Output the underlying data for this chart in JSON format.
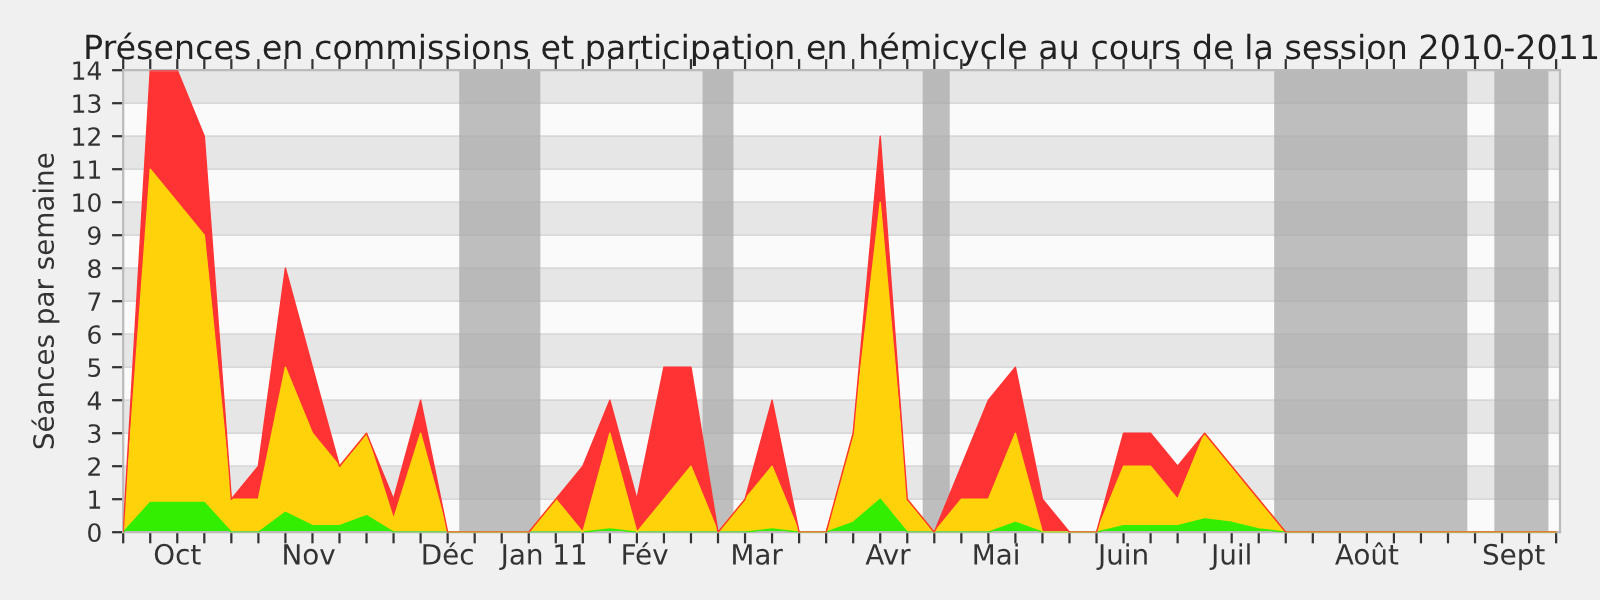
{
  "chart_data": {
    "type": "area",
    "stacked": true,
    "title": "Présences en commissions et participation en hémicycle au cours de la session 2010-2011",
    "ylabel": "Séances par semaine",
    "x": [
      "2010-09-27",
      "2010-10-04",
      "2010-10-11",
      "2010-10-18",
      "2010-10-25",
      "2010-11-01",
      "2010-11-08",
      "2010-11-15",
      "2010-11-22",
      "2010-11-29",
      "2010-12-06",
      "2010-12-13",
      "2010-12-20",
      "2010-12-27",
      "2011-01-03",
      "2011-01-10",
      "2011-01-17",
      "2011-01-24",
      "2011-01-31",
      "2011-02-07",
      "2011-02-14",
      "2011-02-21",
      "2011-02-28",
      "2011-03-07",
      "2011-03-14",
      "2011-03-21",
      "2011-03-28",
      "2011-04-04",
      "2011-04-11",
      "2011-04-18",
      "2011-04-25",
      "2011-05-02",
      "2011-05-09",
      "2011-05-16",
      "2011-05-23",
      "2011-05-30",
      "2011-06-06",
      "2011-06-13",
      "2011-06-20",
      "2011-06-27",
      "2011-07-04",
      "2011-07-11",
      "2011-07-18",
      "2011-07-25",
      "2011-08-01",
      "2011-08-08",
      "2011-08-15",
      "2011-08-22",
      "2011-08-29",
      "2011-09-05",
      "2011-09-12",
      "2011-09-19",
      "2011-09-26",
      "2011-10-03"
    ],
    "series": [
      {
        "color": "#33ee00",
        "values": [
          0,
          0.9,
          0.9,
          0.9,
          0,
          0,
          0.6,
          0.2,
          0.2,
          0.5,
          0,
          0,
          0,
          0,
          0,
          0,
          0,
          0,
          0.1,
          0,
          0,
          0,
          0,
          0,
          0.1,
          0,
          0,
          0.3,
          1,
          0,
          0,
          0,
          0,
          0.3,
          0,
          0,
          0,
          0.2,
          0.2,
          0.2,
          0.4,
          0.3,
          0.1,
          0,
          0,
          0,
          0,
          0,
          0,
          0,
          0,
          0,
          0,
          0
        ]
      },
      {
        "color": "#ffd20a",
        "values": [
          0,
          10.1,
          9.1,
          8.1,
          1,
          1,
          4.4,
          2.8,
          1.8,
          2.5,
          0.4,
          3,
          0,
          0,
          0,
          0,
          1,
          0,
          2.9,
          0,
          1,
          2,
          0,
          1,
          1.9,
          0,
          0,
          2.7,
          9,
          1,
          0,
          1,
          1,
          2.7,
          0,
          0,
          0,
          1.8,
          1.8,
          0.8,
          2.6,
          1.7,
          0.9,
          0,
          0,
          0,
          0,
          0,
          0,
          0,
          0,
          0,
          0,
          0
        ]
      },
      {
        "color": "#ff3333",
        "values": [
          0,
          3,
          4,
          3,
          0,
          1,
          3,
          2,
          0,
          0,
          0.6,
          1,
          0,
          0,
          0,
          0,
          0,
          2,
          1,
          1,
          4,
          3,
          0,
          0,
          2,
          0,
          0,
          0,
          2,
          0,
          0,
          1,
          3,
          2,
          1,
          0,
          0,
          1,
          1,
          1,
          0,
          0,
          0,
          0,
          0,
          0,
          0,
          0,
          0,
          0,
          0,
          0,
          0,
          0
        ]
      }
    ],
    "xlim": [
      "2010-09-27",
      "2011-10-04"
    ],
    "xticks": [
      {
        "value": "2010-09-27",
        "label": null
      },
      {
        "value": "2010-10-04",
        "label": null
      },
      {
        "value": "2010-10-11",
        "label": null
      },
      {
        "value": "2010-10-18",
        "label": null
      },
      {
        "value": "2010-10-25",
        "label": null
      },
      {
        "value": "2010-11-01",
        "label": null
      },
      {
        "value": "2010-11-08",
        "label": null
      },
      {
        "value": "2010-11-15",
        "label": null
      },
      {
        "value": "2010-11-22",
        "label": null
      },
      {
        "value": "2010-11-29",
        "label": null
      },
      {
        "value": "2010-12-06",
        "label": null
      },
      {
        "value": "2010-12-13",
        "label": null
      },
      {
        "value": "2010-12-20",
        "label": null
      },
      {
        "value": "2010-12-27",
        "label": null
      },
      {
        "value": "2011-01-03",
        "label": null
      },
      {
        "value": "2011-01-10",
        "label": null
      },
      {
        "value": "2011-01-17",
        "label": null
      },
      {
        "value": "2011-01-24",
        "label": null
      },
      {
        "value": "2011-01-31",
        "label": null
      },
      {
        "value": "2011-02-07",
        "label": null
      },
      {
        "value": "2011-02-14",
        "label": null
      },
      {
        "value": "2011-02-21",
        "label": null
      },
      {
        "value": "2011-02-28",
        "label": null
      },
      {
        "value": "2011-03-07",
        "label": null
      },
      {
        "value": "2011-03-14",
        "label": null
      },
      {
        "value": "2011-03-21",
        "label": null
      },
      {
        "value": "2011-03-28",
        "label": null
      },
      {
        "value": "2011-04-04",
        "label": null
      },
      {
        "value": "2011-04-11",
        "label": null
      },
      {
        "value": "2011-04-18",
        "label": null
      },
      {
        "value": "2011-04-25",
        "label": null
      },
      {
        "value": "2011-05-02",
        "label": null
      },
      {
        "value": "2011-05-09",
        "label": null
      },
      {
        "value": "2011-05-16",
        "label": null
      },
      {
        "value": "2011-05-23",
        "label": null
      },
      {
        "value": "2011-05-30",
        "label": null
      },
      {
        "value": "2011-06-06",
        "label": null
      },
      {
        "value": "2011-06-13",
        "label": null
      },
      {
        "value": "2011-06-20",
        "label": null
      },
      {
        "value": "2011-06-27",
        "label": null
      },
      {
        "value": "2011-07-04",
        "label": null
      },
      {
        "value": "2011-07-11",
        "label": null
      },
      {
        "value": "2011-07-18",
        "label": null
      },
      {
        "value": "2011-07-25",
        "label": null
      },
      {
        "value": "2011-08-01",
        "label": null
      },
      {
        "value": "2011-08-08",
        "label": null
      },
      {
        "value": "2011-08-15",
        "label": null
      },
      {
        "value": "2011-08-22",
        "label": null
      },
      {
        "value": "2011-08-29",
        "label": null
      },
      {
        "value": "2011-09-05",
        "label": null
      },
      {
        "value": "2011-09-12",
        "label": null
      },
      {
        "value": "2011-09-19",
        "label": null
      },
      {
        "value": "2011-09-26",
        "label": null
      },
      {
        "value": "2011-10-03",
        "label": null
      },
      {
        "value": "2010-10-11",
        "label": "Oct"
      },
      {
        "value": "2010-11-14",
        "label": "Nov"
      },
      {
        "value": "2010-12-20",
        "label": "Déc"
      },
      {
        "value": "2011-01-14",
        "label": "Jan 11"
      },
      {
        "value": "2011-02-09",
        "label": "Fév"
      },
      {
        "value": "2011-03-10",
        "label": "Mar"
      },
      {
        "value": "2011-04-13",
        "label": "Avr"
      },
      {
        "value": "2011-05-11",
        "label": "Mai"
      },
      {
        "value": "2011-06-13",
        "label": "Juin"
      },
      {
        "value": "2011-07-11",
        "label": "Juil"
      },
      {
        "value": "2011-08-15",
        "label": "Août"
      },
      {
        "value": "2011-09-22",
        "label": "Sept"
      }
    ],
    "ylim": [
      0,
      14
    ],
    "yticks": [
      0,
      1,
      2,
      3,
      4,
      5,
      6,
      7,
      8,
      9,
      10,
      11,
      12,
      13,
      14
    ],
    "grid": "y",
    "bands": [
      {
        "axis": "x",
        "from": "2010-12-23",
        "to": "2011-01-13",
        "color": "#aaaaaa"
      },
      {
        "axis": "x",
        "from": "2011-02-24",
        "to": "2011-03-04",
        "color": "#aaaaaa"
      },
      {
        "axis": "x",
        "from": "2011-04-22",
        "to": "2011-04-29",
        "color": "#aaaaaa"
      },
      {
        "axis": "x",
        "from": "2011-07-22",
        "to": "2011-09-10",
        "color": "#aaaaaa"
      },
      {
        "axis": "x",
        "from": "2011-09-17",
        "to": "2011-10-01",
        "color": "#aaaaaa"
      }
    ]
  }
}
